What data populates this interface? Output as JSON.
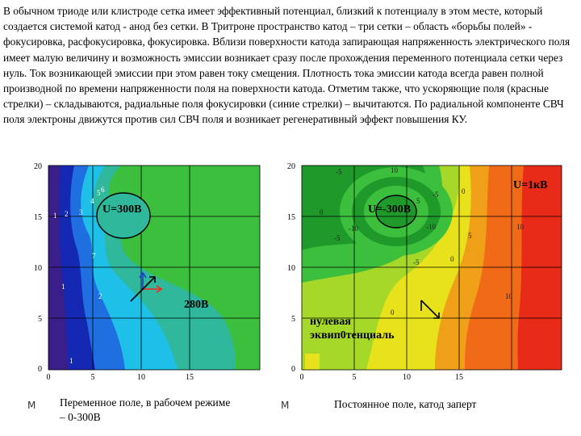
{
  "paragraph": "В обычном триоде или клистроде сетка имеет эффективный потенциал, близкий к потенциалу в этом месте, который создается системой катод - анод без сетки. В Тритроне пространство катод – три сетки – область «борьбы полей» - фокусировка, расфокусировка, фокусировка. Вблизи поверхности катода запирающая напряженность электрического поля имеет малую величину и возможность эмиссии возникает сразу после прохождения переменного потенциала сетки через нуль. Ток возникающей эмиссии при этом равен току смещения. Плотность тока эмиссии катода всегда равен полной производной по времени напряженности поля на поверхности катода. Отметим также, что ускоряющие поля (красные стрелки) – складываются, радиальные поля фокусировки (синие стрелки) – вычитаются. По радиальной компоненте СВЧ поля электроны движутся против сил СВЧ поля и возникает регенеративный эффект повышения КУ.",
  "left_panel": {
    "y_ticks": [
      "20",
      "15",
      "10",
      "5",
      "0"
    ],
    "x_ticks": [
      "0",
      "5",
      "10",
      "15"
    ],
    "axis_letter": "М",
    "label_grid": "U=300В",
    "label_280": "280В",
    "contour_labels": [
      "1",
      "2",
      "3",
      "4",
      "5",
      "6",
      "7",
      "1",
      "2",
      "1"
    ],
    "caption": "Переменное поле, в рабочем режиме – 0-300В",
    "colors": {
      "purple": "#3a1f8a",
      "navy": "#1428b4",
      "blue": "#1f6fe0",
      "cyan": "#1fc0e8",
      "teal": "#2fb89c",
      "green": "#3cbf3c",
      "arrow_red": "#ff2020",
      "arrow_blue": "#1f3fd0",
      "arrow_black": "#000000"
    }
  },
  "right_panel": {
    "y_ticks": [
      "20",
      "15",
      "10",
      "5",
      "0"
    ],
    "x_ticks": [
      "0",
      "5",
      "10",
      "15"
    ],
    "axis_letter": "М",
    "label_grid": "U=-300В",
    "label_1kv": "U=1кВ",
    "label_zero": "нулевая эквип0тенциаль",
    "contour_labels": [
      "-5",
      "10",
      "-5",
      "0",
      "5",
      "-5",
      "0",
      "-10",
      "-10",
      "-5",
      "0",
      "5",
      "10",
      "10",
      "0"
    ],
    "caption": "Постоянное поле, катод заперт",
    "colors": {
      "green_dark": "#1f9a2a",
      "green": "#3cbf3c",
      "lime": "#a6d82a",
      "yellow": "#e8e21c",
      "orange": "#f0a018",
      "orange_red": "#f06a18",
      "red": "#e82a18"
    }
  }
}
